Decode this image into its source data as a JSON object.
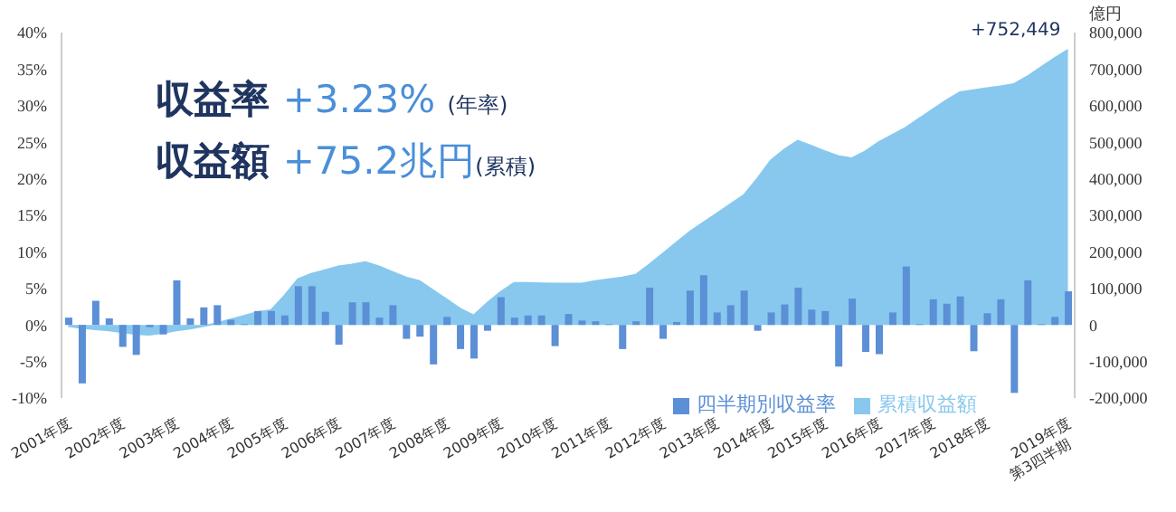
{
  "chart_data": {
    "type": "bar",
    "categories": [
      "2001年度",
      null,
      null,
      null,
      "2002年度",
      null,
      null,
      null,
      "2003年度",
      null,
      null,
      null,
      "2004年度",
      null,
      null,
      null,
      "2005年度",
      null,
      null,
      null,
      "2006年度",
      null,
      null,
      null,
      "2007年度",
      null,
      null,
      null,
      "2008年度",
      null,
      null,
      null,
      "2009年度",
      null,
      null,
      null,
      "2010年度",
      null,
      null,
      null,
      "2011年度",
      null,
      null,
      null,
      "2012年度",
      null,
      null,
      null,
      "2013年度",
      null,
      null,
      null,
      "2014年度",
      null,
      null,
      null,
      "2015年度",
      null,
      null,
      null,
      "2016年度",
      null,
      null,
      null,
      "2017年度",
      null,
      null,
      null,
      "2018年度",
      null,
      null,
      null,
      null,
      null,
      "2019年度\n第3四半期"
    ],
    "series": [
      {
        "name": "累積収益額",
        "type": "area",
        "axis": "y2",
        "color": "#88c8ee",
        "values": [
          -3000,
          -8000,
          -12000,
          -15000,
          -20000,
          -25000,
          -27000,
          -22000,
          -15000,
          -10000,
          -3000,
          5000,
          15000,
          25000,
          35000,
          40000,
          80000,
          125000,
          140000,
          150000,
          160000,
          165000,
          172000,
          160000,
          145000,
          130000,
          120000,
          95000,
          70000,
          45000,
          26000,
          60000,
          90000,
          115000,
          115000,
          114000,
          113000,
          113000,
          113000,
          120000,
          125000,
          130000,
          137000,
          165000,
          195000,
          225000,
          255000,
          280000,
          305000,
          330000,
          355000,
          400000,
          450000,
          480000,
          504000,
          490000,
          475000,
          462000,
          456000,
          475000,
          500000,
          520000,
          540000,
          565000,
          590000,
          615000,
          637000,
          642000,
          648000,
          653000,
          659000,
          680000,
          705000,
          730000,
          752449
        ],
        "value_labels": [
          null,
          null,
          null,
          null,
          null,
          null,
          null,
          null,
          null,
          null,
          null,
          null,
          null,
          null,
          null,
          null,
          null,
          null,
          null,
          null,
          null,
          null,
          null,
          null,
          null,
          null,
          null,
          null,
          null,
          null,
          null,
          null,
          null,
          null,
          null,
          null,
          null,
          null,
          null,
          null,
          null,
          null,
          null,
          null,
          null,
          null,
          null,
          null,
          null,
          null,
          null,
          null,
          null,
          null,
          null,
          null,
          null,
          null,
          null,
          null,
          null,
          null,
          null,
          null,
          null,
          null,
          null,
          null,
          null,
          null,
          null,
          null,
          null,
          null,
          "+752,449"
        ]
      },
      {
        "name": "四半期別収益率",
        "color": "#5b8fd6",
        "values": [
          1.0,
          -8.0,
          3.3,
          0.9,
          -3.0,
          -4.1,
          -0.3,
          -1.3,
          6.1,
          0.9,
          2.4,
          2.7,
          0.7,
          0.1,
          1.9,
          1.9,
          1.3,
          5.3,
          5.3,
          1.8,
          -2.7,
          3.1,
          3.1,
          1.0,
          2.7,
          -1.9,
          -1.6,
          -5.4,
          1.1,
          -3.3,
          -4.6,
          -0.8,
          3.8,
          1.0,
          1.3,
          1.3,
          -2.9,
          1.5,
          0.6,
          0.5,
          0.1,
          -3.3,
          0.5,
          5.1,
          -1.9,
          0.4,
          4.7,
          6.8,
          1.7,
          2.7,
          4.7,
          -0.8,
          1.7,
          2.8,
          5.1,
          2.1,
          1.9,
          -5.7,
          3.6,
          -3.7,
          -4.0,
          1.7,
          8.0,
          0.1,
          3.5,
          2.9,
          3.9,
          -3.6,
          1.6,
          3.5,
          -9.3,
          6.1,
          0.1,
          1.1,
          4.6
        ]
      }
    ],
    "ylim": [
      -10,
      40
    ],
    "yticks": [
      {
        "value": -10,
        "label": "-10%"
      },
      {
        "value": -5,
        "label": "-5%"
      },
      {
        "value": 0,
        "label": "0%"
      },
      {
        "value": 5,
        "label": "5%"
      },
      {
        "value": 10,
        "label": "10%"
      },
      {
        "value": 15,
        "label": "15%"
      },
      {
        "value": 20,
        "label": "20%"
      },
      {
        "value": 25,
        "label": "25%"
      },
      {
        "value": 30,
        "label": "30%"
      },
      {
        "value": 35,
        "label": "35%"
      },
      {
        "value": 40,
        "label": "40%"
      }
    ],
    "y2label": "億円",
    "y2lim": [
      -200000,
      800000
    ],
    "y2ticks": [
      {
        "value": -200000,
        "label": "-200,000"
      },
      {
        "value": -100000,
        "label": "-100,000"
      },
      {
        "value": 0,
        "label": "0"
      },
      {
        "value": 100000,
        "label": "100,000"
      },
      {
        "value": 200000,
        "label": "200,000"
      },
      {
        "value": 300000,
        "label": "300,000"
      },
      {
        "value": 400000,
        "label": "400,000"
      },
      {
        "value": 500000,
        "label": "500,000"
      },
      {
        "value": 600000,
        "label": "600,000"
      },
      {
        "value": 700000,
        "label": "700,000"
      },
      {
        "value": 800000,
        "label": "800,000"
      }
    ],
    "annotations": [
      "収益率 +3.23% (年率)",
      "収益額 +75.2兆円(累積)"
    ],
    "legend": "bottom right",
    "grid": false
  }
}
